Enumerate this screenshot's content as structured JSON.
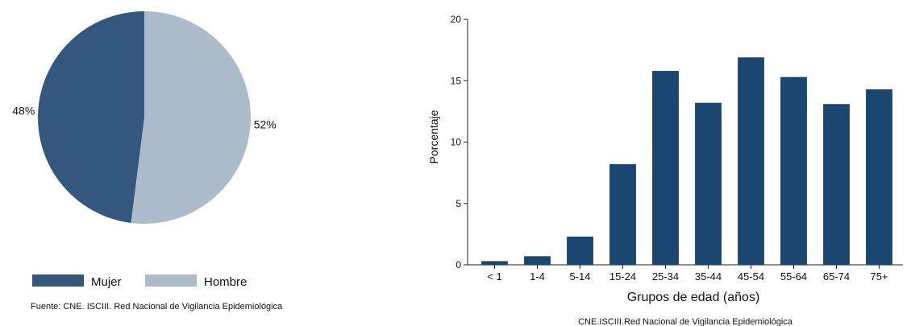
{
  "colors": {
    "mujer": "#34587d",
    "hombre": "#adbccb",
    "bar": "#1b466f",
    "axis": "#222222"
  },
  "chart_data": [
    {
      "type": "pie",
      "slices": [
        {
          "label": "Mujer",
          "value": 48,
          "value_label": "48%"
        },
        {
          "label": "Hombre",
          "value": 52,
          "value_label": "52%"
        }
      ],
      "legend_placement": "bottom",
      "source": "Fuente: CNE. ISCIII. Red Nacional de Vigilancia Epidemiológica"
    },
    {
      "type": "bar",
      "categories": [
        "< 1",
        "1-4",
        "5-14",
        "15-24",
        "25-34",
        "35-44",
        "45-54",
        "55-64",
        "65-74",
        "75+"
      ],
      "values": [
        0.3,
        0.7,
        2.3,
        8.2,
        15.8,
        13.2,
        16.9,
        15.3,
        13.1,
        14.3
      ],
      "xlabel": "Grupos de edad (años)",
      "ylabel": "Porcentaje",
      "ylim": [
        0,
        20
      ],
      "yticks": [
        0,
        5,
        10,
        15,
        20
      ],
      "grid": false,
      "source": "CNE.ISCIII.Red Nacional de Vigilancia Epidemiológica"
    }
  ]
}
